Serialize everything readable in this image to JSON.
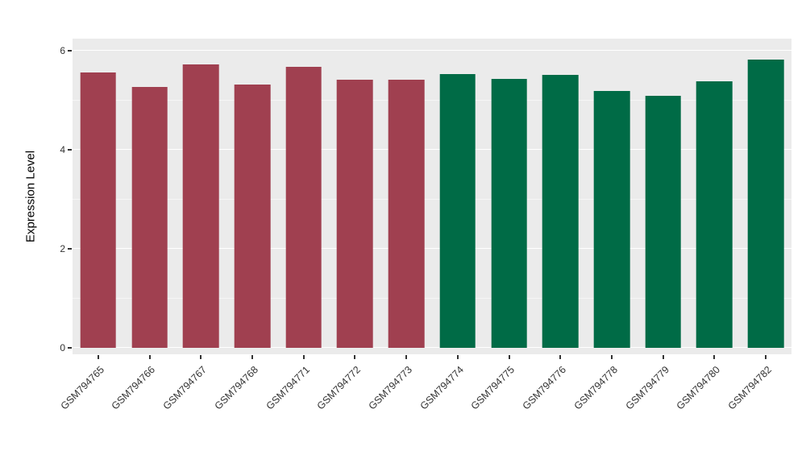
{
  "chart_data": {
    "type": "bar",
    "title": "",
    "xlabel": "",
    "ylabel": "Expression Level",
    "ylim": [
      0,
      6.35
    ],
    "yticks_major": [
      0,
      2,
      4,
      6
    ],
    "yticks_minor": [
      1,
      3,
      5
    ],
    "grid": "on",
    "legend": "none",
    "panel_bg": "#EBEBEB",
    "grid_color": "#FFFFFF",
    "tick_color": "#333333",
    "categories": [
      "GSM794765",
      "GSM794766",
      "GSM794767",
      "GSM794768",
      "GSM794771",
      "GSM794772",
      "GSM794773",
      "GSM794774",
      "GSM794775",
      "GSM794776",
      "GSM794778",
      "GSM794779",
      "GSM794780",
      "GSM794782"
    ],
    "values": [
      5.56,
      5.27,
      5.72,
      5.32,
      5.67,
      5.41,
      5.41,
      5.53,
      5.43,
      5.51,
      5.19,
      5.09,
      5.38,
      5.82
    ],
    "colors": [
      "#A04050",
      "#A04050",
      "#A04050",
      "#A04050",
      "#A04050",
      "#A04050",
      "#A04050",
      "#006B46",
      "#006B46",
      "#006B46",
      "#006B46",
      "#006B46",
      "#006B46",
      "#006B46"
    ],
    "group_colors": {
      "left_group": "#A04050",
      "right_group": "#006B46"
    }
  }
}
